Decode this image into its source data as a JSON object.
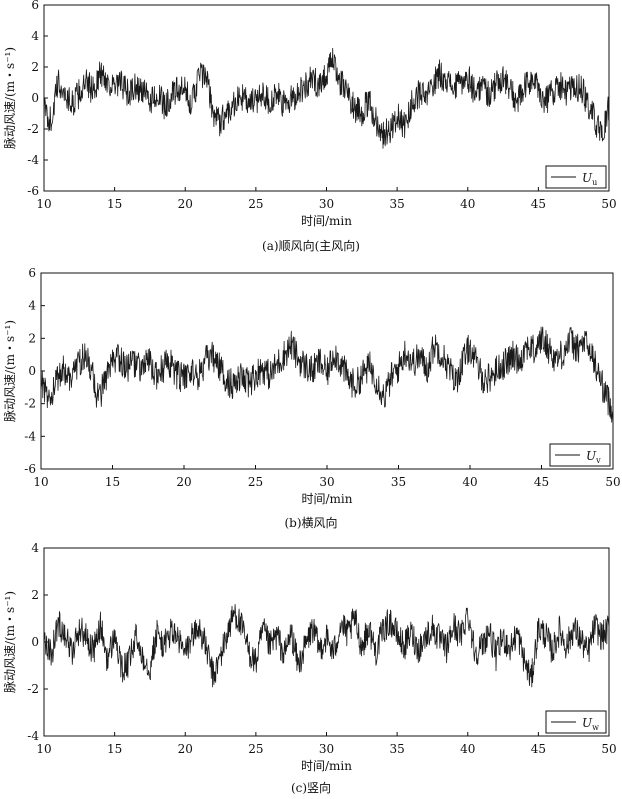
{
  "chart_data": [
    {
      "type": "line",
      "caption": "(a)顺风向(主风向)",
      "xlabel": "时间/min",
      "ylabel": "脉动风速/(m・s⁻¹)",
      "xlim": [
        10,
        50
      ],
      "ylim": [
        -6,
        6
      ],
      "xticks": [
        10,
        15,
        20,
        25,
        30,
        35,
        40,
        45,
        50
      ],
      "yticks": [
        -6,
        -4,
        -2,
        0,
        2,
        4,
        6
      ],
      "legend": {
        "symbol": "U",
        "subscript": "u",
        "placement": "bottom-right"
      },
      "series": [
        {
          "name": "Uu",
          "color": "#1a1a1a",
          "x": [
            10,
            10.5,
            11,
            11.5,
            12,
            12.5,
            13,
            13.5,
            14,
            14.5,
            15,
            15.5,
            16,
            16.5,
            17,
            17.5,
            18,
            18.5,
            19,
            19.5,
            20,
            20.5,
            21,
            21.5,
            22,
            22.5,
            23,
            23.5,
            24,
            24.5,
            25,
            25.5,
            26,
            26.5,
            27,
            27.5,
            28,
            28.5,
            29,
            29.5,
            30,
            30.5,
            31,
            31.5,
            32,
            32.5,
            33,
            33.5,
            34,
            34.5,
            35,
            35.5,
            36,
            36.5,
            37,
            37.5,
            38,
            38.5,
            39,
            39.5,
            40,
            40.5,
            41,
            41.5,
            42,
            42.5,
            43,
            43.5,
            44,
            44.5,
            45,
            45.5,
            46,
            46.5,
            47,
            47.5,
            48,
            48.5,
            49,
            49.5,
            50
          ],
          "y": [
            -0.8,
            -1.5,
            1.0,
            0.2,
            -0.4,
            0.3,
            0.9,
            0.5,
            1.6,
            1.1,
            0.6,
            0.9,
            0.2,
            0.7,
            0.4,
            -0.2,
            0.3,
            -0.5,
            0.1,
            0.5,
            0.4,
            -0.3,
            1.6,
            1.2,
            -1.0,
            -1.6,
            -0.8,
            -0.3,
            0.1,
            -0.4,
            -0.2,
            0.4,
            -0.3,
            0.2,
            -0.5,
            -0.1,
            0.4,
            0.8,
            1.2,
            0.9,
            1.6,
            2.4,
            1.0,
            0.3,
            -0.6,
            -0.9,
            -0.3,
            -1.4,
            -2.4,
            -2.0,
            -1.2,
            -1.8,
            -0.5,
            0.3,
            -0.1,
            0.8,
            1.6,
            1.2,
            0.6,
            0.9,
            1.4,
            0.4,
            0.8,
            0.3,
            0.8,
            1.4,
            0.5,
            -0.3,
            0.6,
            1.2,
            0.6,
            -0.2,
            0.4,
            0.9,
            0.3,
            0.6,
            0.7,
            -0.4,
            -1.4,
            -2.6,
            -0.6
          ]
        }
      ]
    },
    {
      "type": "line",
      "caption": "(b)横风向",
      "xlabel": "时间/min",
      "ylabel": "脉动风速/(m・s⁻¹)",
      "xlim": [
        10,
        50
      ],
      "ylim": [
        -6,
        6
      ],
      "xticks": [
        10,
        15,
        20,
        25,
        30,
        35,
        40,
        45,
        50
      ],
      "yticks": [
        -6,
        -4,
        -2,
        0,
        2,
        4,
        6
      ],
      "legend": {
        "symbol": "U",
        "subscript": "v",
        "placement": "bottom-right"
      },
      "series": [
        {
          "name": "Uv",
          "color": "#1a1a1a",
          "x": [
            10,
            10.5,
            11,
            11.5,
            12,
            12.5,
            13,
            13.5,
            14,
            14.5,
            15,
            15.5,
            16,
            16.5,
            17,
            17.5,
            18,
            18.5,
            19,
            19.5,
            20,
            20.5,
            21,
            21.5,
            22,
            22.5,
            23,
            23.5,
            24,
            24.5,
            25,
            25.5,
            26,
            26.5,
            27,
            27.5,
            28,
            28.5,
            29,
            29.5,
            30,
            30.5,
            31,
            31.5,
            32,
            32.5,
            33,
            33.5,
            34,
            34.5,
            35,
            35.5,
            36,
            36.5,
            37,
            37.5,
            38,
            38.5,
            39,
            39.5,
            40,
            40.5,
            41,
            41.5,
            42,
            42.5,
            43,
            43.5,
            44,
            44.5,
            45,
            45.5,
            46,
            46.5,
            47,
            47.5,
            48,
            48.5,
            49,
            49.5,
            50
          ],
          "y": [
            -0.4,
            -1.8,
            -1.0,
            0.3,
            -0.6,
            0.4,
            0.9,
            0.2,
            -1.8,
            -0.6,
            0.4,
            0.8,
            0.2,
            0.5,
            0.1,
            0.6,
            -0.3,
            0.2,
            0.5,
            -0.2,
            -0.5,
            0.1,
            -0.4,
            0.6,
            0.9,
            0.2,
            -0.6,
            -0.9,
            -0.4,
            -0.8,
            -0.2,
            0.2,
            -0.3,
            0.4,
            1.0,
            1.6,
            0.7,
            0.3,
            0.0,
            0.6,
            -0.2,
            1.2,
            0.4,
            -0.5,
            -0.9,
            -0.2,
            0.3,
            -0.6,
            -1.6,
            -0.4,
            0.2,
            1.2,
            0.5,
            0.9,
            0.1,
            1.6,
            1.1,
            0.2,
            -0.7,
            0.6,
            1.5,
            0.3,
            -0.6,
            -0.3,
            0.2,
            0.5,
            0.9,
            0.7,
            1.6,
            1.2,
            2.0,
            1.4,
            0.7,
            1.1,
            1.9,
            1.3,
            1.8,
            1.0,
            -0.2,
            -1.5,
            -2.4
          ]
        }
      ]
    },
    {
      "type": "line",
      "caption": "(c)竖向",
      "xlabel": "时间/min",
      "ylabel": "脉动风速/(m・s⁻¹)",
      "xlim": [
        10,
        50
      ],
      "ylim": [
        -4,
        4
      ],
      "xticks": [
        10,
        15,
        20,
        25,
        30,
        35,
        40,
        45,
        50
      ],
      "yticks": [
        -4,
        -2,
        0,
        2,
        4
      ],
      "legend": {
        "symbol": "U",
        "subscript": "w",
        "placement": "bottom-right"
      },
      "series": [
        {
          "name": "Uw",
          "color": "#1a1a1a",
          "x": [
            10,
            10.5,
            11,
            11.5,
            12,
            12.5,
            13,
            13.5,
            14,
            14.5,
            15,
            15.5,
            16,
            16.5,
            17,
            17.5,
            18,
            18.5,
            19,
            19.5,
            20,
            20.5,
            21,
            21.5,
            22,
            22.5,
            23,
            23.5,
            24,
            24.5,
            25,
            25.5,
            26,
            26.5,
            27,
            27.5,
            28,
            28.5,
            29,
            29.5,
            30,
            30.5,
            31,
            31.5,
            32,
            32.5,
            33,
            33.5,
            34,
            34.5,
            35,
            35.5,
            36,
            36.5,
            37,
            37.5,
            38,
            38.5,
            39,
            39.5,
            40,
            40.5,
            41,
            41.5,
            42,
            42.5,
            43,
            43.5,
            44,
            44.5,
            45,
            45.5,
            46,
            46.5,
            47,
            47.5,
            48,
            48.5,
            49,
            49.5,
            50
          ],
          "y": [
            0.3,
            -0.6,
            0.8,
            0.4,
            -0.5,
            0.6,
            0.2,
            -0.4,
            0.7,
            -0.8,
            0.3,
            -1.2,
            -0.9,
            0.2,
            -0.6,
            -1.1,
            0.4,
            -0.2,
            0.5,
            0.1,
            -0.5,
            0.3,
            0.6,
            -0.3,
            -1.5,
            -0.6,
            0.4,
            1.3,
            0.6,
            -0.4,
            -0.9,
            0.5,
            -0.2,
            0.3,
            -0.6,
            0.4,
            -1.0,
            -0.2,
            0.6,
            -0.3,
            0.2,
            -0.5,
            0.8,
            0.3,
            1.0,
            -0.2,
            0.6,
            -0.4,
            0.5,
            0.9,
            0.3,
            -0.2,
            0.4,
            -0.3,
            0.2,
            0.6,
            0.1,
            -0.3,
            0.7,
            0.2,
            1.3,
            -0.4,
            -0.2,
            0.5,
            -0.6,
            0.2,
            -0.3,
            0.4,
            -0.8,
            -1.6,
            0.6,
            0.3,
            -0.4,
            0.5,
            -0.2,
            0.6,
            0.1,
            -0.5,
            0.7,
            0.2,
            0.6
          ]
        }
      ]
    }
  ]
}
